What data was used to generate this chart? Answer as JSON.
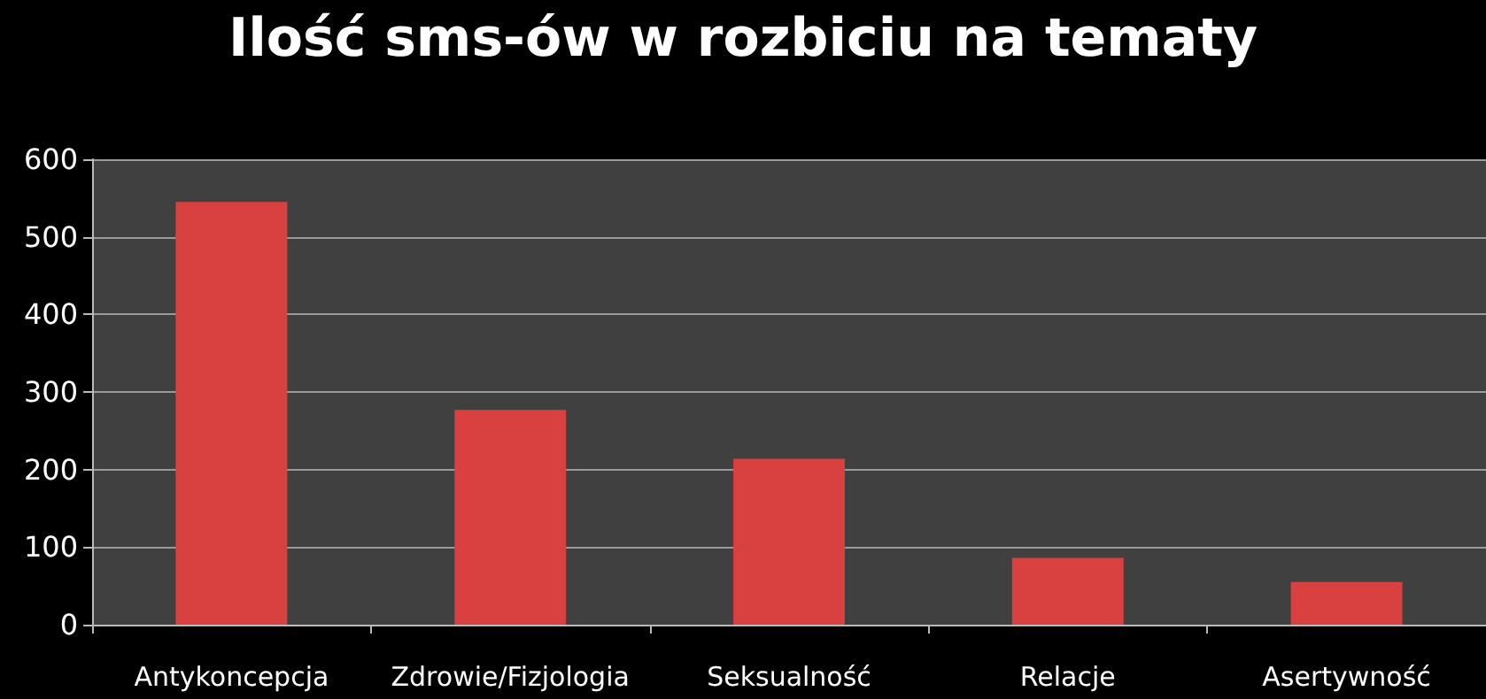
{
  "chart_data": {
    "type": "bar",
    "title": "Ilość sms-ów w rozbiciu na tematy",
    "categories": [
      "Antykoncepcja",
      "Zdrowie/Fizjologia",
      "Seksualność",
      "Relacje",
      "Asertywność"
    ],
    "values": [
      545,
      277,
      214,
      86,
      55
    ],
    "color": "#d94040",
    "ylim": [
      0,
      600
    ],
    "yticks": [
      0,
      100,
      200,
      300,
      400,
      500,
      600
    ],
    "grid": "y"
  }
}
